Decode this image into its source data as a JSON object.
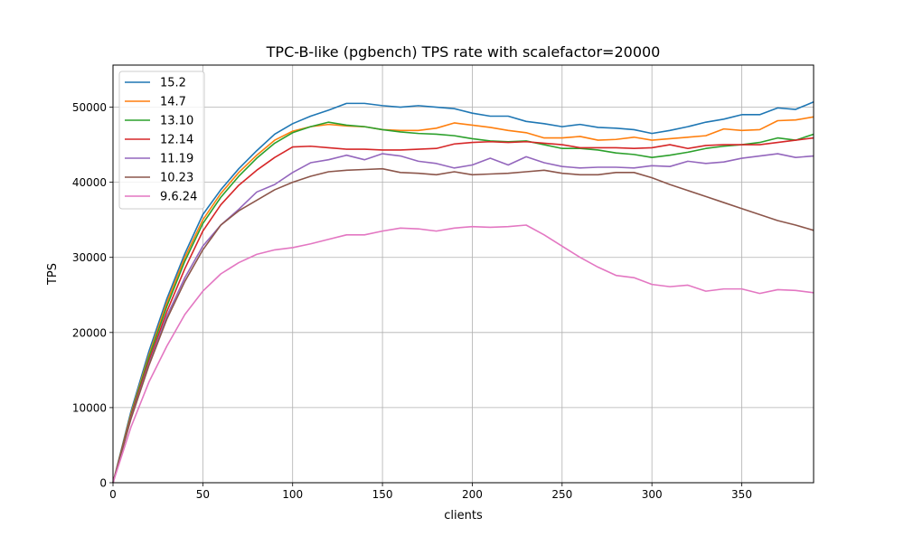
{
  "chart_data": {
    "type": "line",
    "title": "TPC-B-like (pgbench) TPS rate with scalefactor=20000",
    "xlabel": "clients",
    "ylabel": "TPS",
    "xlim": [
      0,
      390
    ],
    "ylim": [
      0,
      55600
    ],
    "grid": true,
    "legend_position": "top-left",
    "x_ticks": [
      0,
      50,
      100,
      150,
      200,
      250,
      300,
      350
    ],
    "y_ticks": [
      0,
      10000,
      20000,
      30000,
      40000,
      50000
    ],
    "x": [
      0,
      10,
      20,
      30,
      40,
      50,
      60,
      70,
      80,
      90,
      100,
      110,
      120,
      130,
      140,
      150,
      160,
      170,
      180,
      190,
      200,
      210,
      220,
      230,
      240,
      250,
      260,
      270,
      280,
      290,
      300,
      310,
      320,
      330,
      340,
      350,
      360,
      370,
      380,
      390
    ],
    "series": [
      {
        "name": "15.2",
        "color": "#1f77b4",
        "values": [
          0,
          9500,
          17500,
          24500,
          30500,
          35700,
          39000,
          41800,
          44200,
          46400,
          47800,
          48800,
          49600,
          50500,
          50500,
          50200,
          50000,
          50200,
          50000,
          49800,
          49200,
          48800,
          48800,
          48100,
          47800,
          47400,
          47700,
          47300,
          47200,
          47000,
          46500,
          46900,
          47400,
          48000,
          48400,
          49000,
          49000,
          49900,
          49700,
          50700
        ]
      },
      {
        "name": "14.7",
        "color": "#ff7f0e",
        "values": [
          0,
          9200,
          17000,
          24000,
          30000,
          35000,
          38500,
          41300,
          43600,
          45600,
          46800,
          47400,
          47700,
          47500,
          47400,
          47000,
          46900,
          46900,
          47200,
          47900,
          47600,
          47300,
          46900,
          46600,
          45900,
          45900,
          46100,
          45600,
          45700,
          46000,
          45600,
          45800,
          46000,
          46200,
          47100,
          46900,
          47000,
          48200,
          48300,
          48700
        ]
      },
      {
        "name": "13.10",
        "color": "#2ca02c",
        "values": [
          0,
          9000,
          16700,
          23500,
          29500,
          34500,
          38000,
          40800,
          43200,
          45200,
          46600,
          47400,
          48000,
          47600,
          47400,
          47000,
          46700,
          46500,
          46400,
          46200,
          45800,
          45500,
          45400,
          45500,
          45000,
          44500,
          44500,
          44300,
          43900,
          43700,
          43300,
          43600,
          44000,
          44500,
          44800,
          45000,
          45300,
          45900,
          45600,
          46400
        ]
      },
      {
        "name": "12.14",
        "color": "#d62728",
        "values": [
          0,
          8800,
          16200,
          22800,
          28500,
          33500,
          37000,
          39600,
          41600,
          43300,
          44700,
          44800,
          44600,
          44400,
          44400,
          44300,
          44300,
          44400,
          44500,
          45100,
          45300,
          45400,
          45300,
          45400,
          45200,
          45000,
          44600,
          44600,
          44600,
          44500,
          44600,
          45000,
          44500,
          44900,
          45000,
          45000,
          45000,
          45300,
          45600,
          45900
        ]
      },
      {
        "name": "11.19",
        "color": "#9467bd",
        "values": [
          0,
          8600,
          15800,
          22200,
          27300,
          31500,
          34300,
          36400,
          38700,
          39700,
          41300,
          42600,
          43000,
          43600,
          43000,
          43800,
          43500,
          42800,
          42500,
          41900,
          42300,
          43200,
          42300,
          43400,
          42600,
          42100,
          41900,
          42000,
          42000,
          41900,
          42200,
          42100,
          42800,
          42500,
          42700,
          43200,
          43500,
          43800,
          43300,
          43500
        ]
      },
      {
        "name": "10.23",
        "color": "#8c564b",
        "values": [
          0,
          8500,
          15600,
          21800,
          26800,
          31000,
          34300,
          36200,
          37600,
          39000,
          40000,
          40800,
          41400,
          41600,
          41700,
          41800,
          41300,
          41200,
          41000,
          41400,
          41000,
          41100,
          41200,
          41400,
          41600,
          41200,
          41000,
          41000,
          41300,
          41300,
          40600,
          39700,
          38900,
          38100,
          37300,
          36500,
          35700,
          34900,
          34300,
          33600
        ]
      },
      {
        "name": "9.6.24",
        "color": "#e377c2",
        "values": [
          0,
          7400,
          13400,
          18200,
          22400,
          25500,
          27800,
          29300,
          30400,
          31000,
          31300,
          31800,
          32400,
          33000,
          33000,
          33500,
          33900,
          33800,
          33500,
          33900,
          34100,
          34000,
          34100,
          34300,
          33000,
          31500,
          30000,
          28700,
          27600,
          27300,
          26400,
          26100,
          26300,
          25500,
          25800,
          25800,
          25200,
          25700,
          25600,
          25300
        ]
      }
    ]
  }
}
